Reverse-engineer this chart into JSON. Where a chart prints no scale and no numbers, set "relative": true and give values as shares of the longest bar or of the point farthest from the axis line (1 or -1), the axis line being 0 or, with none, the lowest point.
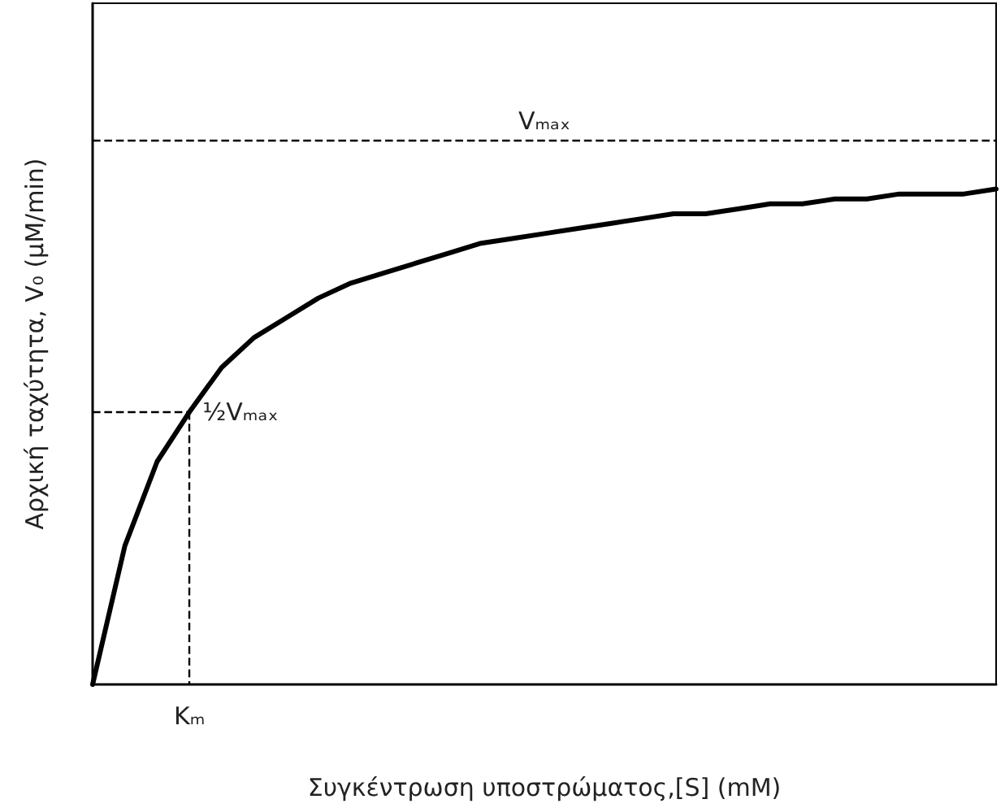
{
  "chart_data": {
    "type": "line",
    "relative": true,
    "xlabel": "Συγκέντρωση υποστρώματος,[S] (mM)",
    "ylabel": "Αρχική ταχύτητα, V₀ (μM/min)",
    "categories": [
      null,
      null,
      null,
      null,
      null,
      null,
      null,
      null,
      null,
      null,
      null,
      null,
      null,
      null,
      null,
      null,
      null,
      null,
      null,
      null,
      null,
      null,
      null,
      null,
      null,
      null,
      null,
      null,
      null
    ],
    "annotations": [
      "Kₘ"
    ],
    "series": [
      {
        "color": "#000000",
        "values": [
          0,
          0.28,
          0.45,
          0.55,
          0.64,
          0.7,
          0.74,
          0.78,
          0.81,
          0.83,
          0.85,
          0.87,
          0.89,
          0.9,
          0.91,
          0.92,
          0.93,
          0.94,
          0.95,
          0.95,
          0.96,
          0.97,
          0.97,
          0.98,
          0.98,
          0.99,
          0.99,
          0.99,
          1.0
        ]
      }
    ],
    "ref_lines": [
      {
        "axis": "y",
        "value": 1.1,
        "label": "Vₘₐₓ",
        "line_style": "dashed",
        "color": "#000000"
      },
      {
        "axis": "y",
        "value": 0.55,
        "label": "½Vₘₐₓ",
        "line_style": "dashed",
        "color": "#000000"
      }
    ],
    "marker": "none",
    "line_style": "solid",
    "grid": false
  }
}
